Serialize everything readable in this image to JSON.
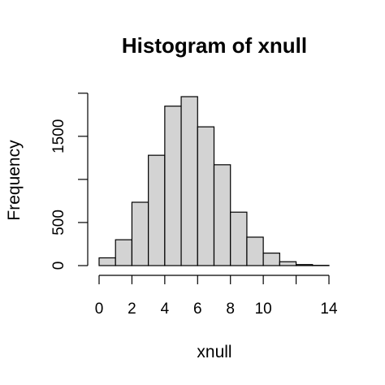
{
  "chart_data": {
    "type": "bar",
    "title": "Histogram of xnull",
    "xlabel": "xnull",
    "ylabel": "Frequency",
    "bins": [
      {
        "start": 0,
        "end": 1,
        "count": 90
      },
      {
        "start": 1,
        "end": 2,
        "count": 300
      },
      {
        "start": 2,
        "end": 3,
        "count": 735
      },
      {
        "start": 3,
        "end": 4,
        "count": 1280
      },
      {
        "start": 4,
        "end": 5,
        "count": 1850
      },
      {
        "start": 5,
        "end": 6,
        "count": 1960
      },
      {
        "start": 6,
        "end": 7,
        "count": 1610
      },
      {
        "start": 7,
        "end": 8,
        "count": 1170
      },
      {
        "start": 8,
        "end": 9,
        "count": 620
      },
      {
        "start": 9,
        "end": 10,
        "count": 330
      },
      {
        "start": 10,
        "end": 11,
        "count": 145
      },
      {
        "start": 11,
        "end": 12,
        "count": 45
      },
      {
        "start": 12,
        "end": 13,
        "count": 12
      },
      {
        "start": 13,
        "end": 14,
        "count": 3
      }
    ],
    "xlim": [
      0,
      14
    ],
    "ylim": [
      0,
      1960
    ],
    "x_ticks": [
      0,
      2,
      4,
      6,
      8,
      10,
      14
    ],
    "y_ticks": [
      0,
      500,
      1500
    ],
    "y_tick_labels": [
      "0",
      "500",
      "1500"
    ],
    "bar_color": "#d3d3d3",
    "grid": false
  }
}
